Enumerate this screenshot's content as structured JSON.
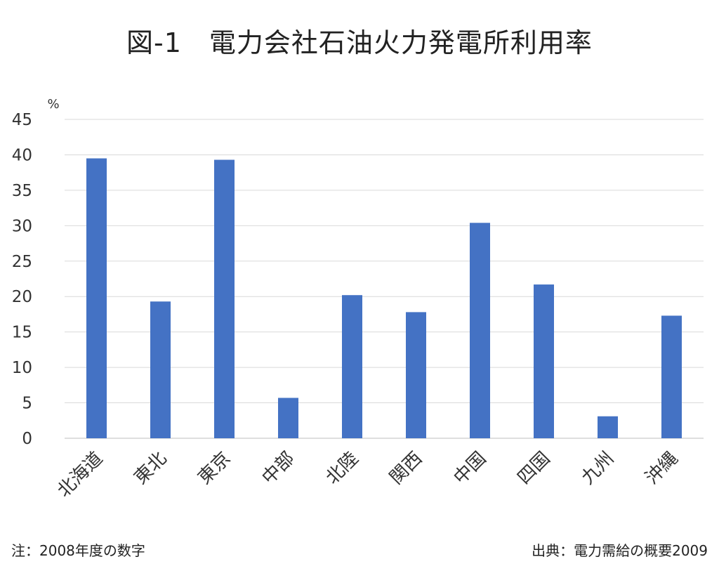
{
  "chart_data": {
    "type": "bar",
    "title": "図-1　電力会社石油火力発電所利用率",
    "ylabel": "%",
    "xlabel": "",
    "ylim": [
      0,
      45
    ],
    "yticks": [
      0,
      5,
      10,
      15,
      20,
      25,
      30,
      35,
      40,
      45
    ],
    "grid": true,
    "categories": [
      "北海道",
      "東北",
      "東京",
      "中部",
      "北陸",
      "関西",
      "中国",
      "四国",
      "九州",
      "沖縄"
    ],
    "values": [
      39.5,
      19.3,
      39.3,
      5.7,
      20.2,
      17.8,
      30.4,
      21.7,
      3.1,
      17.3
    ],
    "bar_color": "#4472C4",
    "legend": "none"
  },
  "notes": {
    "left": "注：2008年度の数字",
    "right": "出典：電力需給の概要2009"
  }
}
